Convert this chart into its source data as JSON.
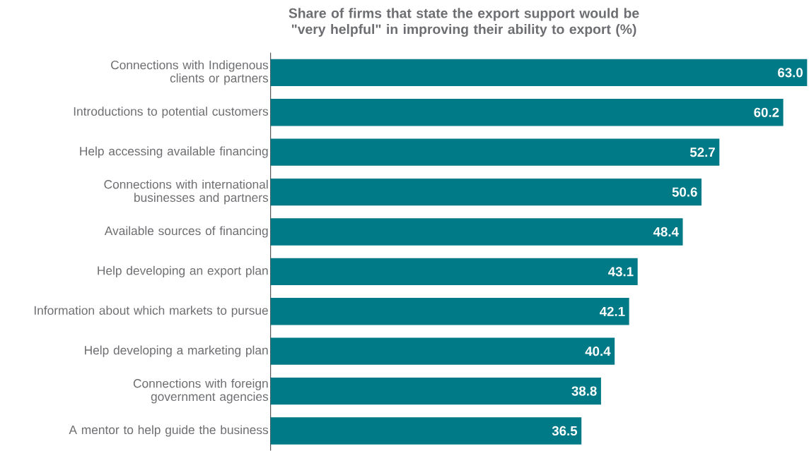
{
  "chart_data": {
    "type": "bar",
    "orientation": "horizontal",
    "title": "Share of firms that state the export support would be \"very helpful\" in improving their ability to export (%)",
    "categories": [
      "Connections with Indigenous clients or partners",
      "Introductions to potential customers",
      "Help accessing available financing",
      "Connections with international businesses and partners",
      "Available sources of financing",
      "Help developing an export plan",
      "Information about which markets to pursue",
      "Help developing a marketing plan",
      "Connections with foreign government agencies",
      "A mentor to help guide the business"
    ],
    "values": [
      63.0,
      60.2,
      52.7,
      50.6,
      48.4,
      43.1,
      42.1,
      40.4,
      38.8,
      36.5
    ],
    "value_labels": [
      "63.0",
      "60.2",
      "52.7",
      "50.6",
      "48.4",
      "43.1",
      "42.1",
      "40.4",
      "38.8",
      "36.5"
    ],
    "color": "#007a87"
  }
}
